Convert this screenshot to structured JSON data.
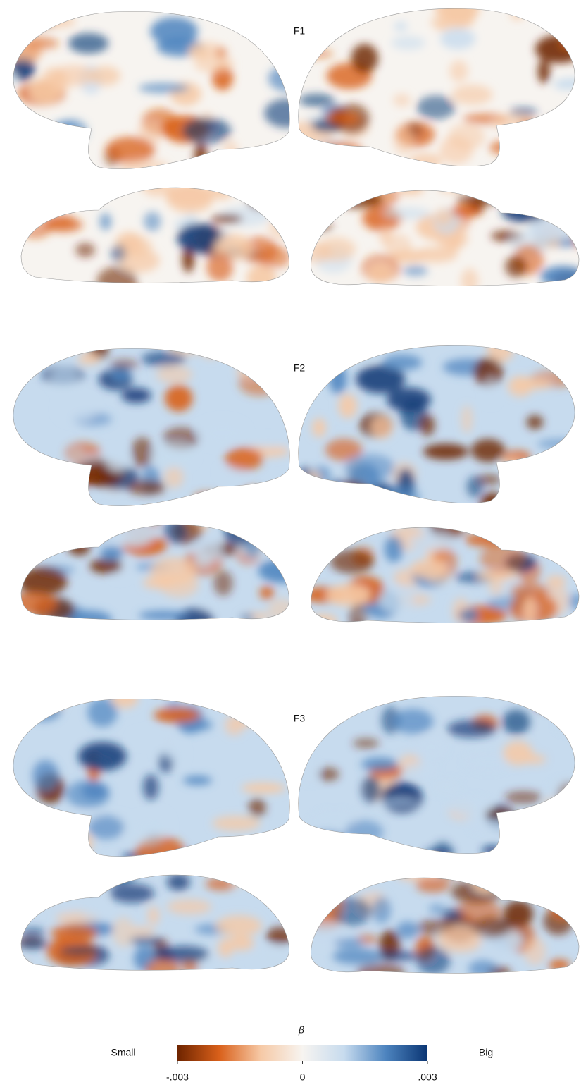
{
  "panels": [
    {
      "label": "F1"
    },
    {
      "label": "F2"
    },
    {
      "label": "F3"
    }
  ],
  "colorbar": {
    "title": "β",
    "low_label": "Small",
    "high_label": "Big",
    "lim": [
      -0.003,
      0.003
    ],
    "ticks": [
      {
        "value": -0.003,
        "label": "-.003"
      },
      0,
      {
        "value": 0.003,
        "label": ".003"
      }
    ],
    "colors": [
      "#6e2400",
      "#d9601a",
      "#f6c9a6",
      "#f7f4f0",
      "#c7dbee",
      "#4d84bf",
      "#0a3573"
    ]
  }
}
